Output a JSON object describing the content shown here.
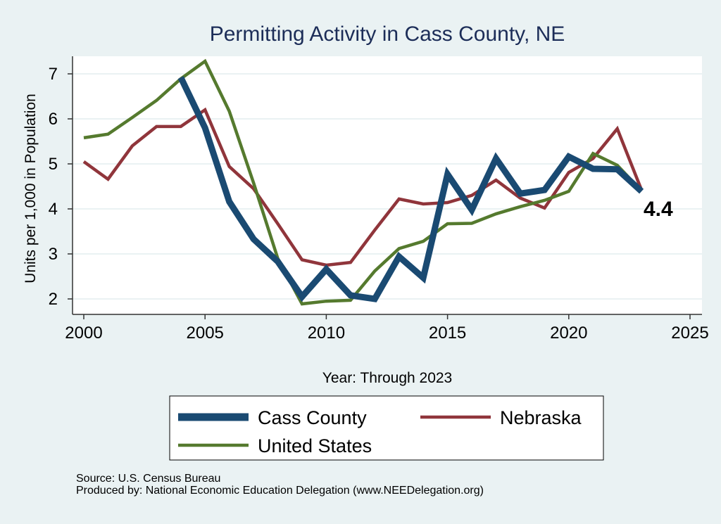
{
  "chart_data": {
    "type": "line",
    "title": "Permitting Activity in Cass County, NE",
    "xlabel": "Year: Through 2023",
    "ylabel": "Units per 1,000 in Population",
    "xlim": [
      2000,
      2025
    ],
    "ylim": [
      1.7,
      7.4
    ],
    "xticks": [
      2000,
      2005,
      2010,
      2015,
      2020,
      2025
    ],
    "yticks": [
      2,
      3,
      4,
      5,
      6,
      7
    ],
    "grid": true,
    "legend_position": "bottom",
    "annotation": {
      "text": "4.4",
      "x": 2023,
      "y": 4.4
    },
    "series": [
      {
        "name": "Cass County",
        "color": "#1a4a72",
        "x": [
          2004,
          2005,
          2006,
          2007,
          2008,
          2009,
          2010,
          2011,
          2012,
          2013,
          2014,
          2015,
          2016,
          2017,
          2018,
          2019,
          2020,
          2021,
          2022,
          2023
        ],
        "values": [
          6.92,
          5.8,
          4.16,
          3.33,
          2.83,
          2.05,
          2.66,
          2.08,
          2.0,
          2.94,
          2.47,
          4.77,
          3.98,
          5.12,
          4.34,
          4.42,
          5.16,
          4.89,
          4.88,
          4.39
        ]
      },
      {
        "name": "Nebraska",
        "color": "#90353b",
        "x": [
          2000,
          2001,
          2002,
          2003,
          2004,
          2005,
          2006,
          2007,
          2008,
          2009,
          2010,
          2011,
          2012,
          2013,
          2014,
          2015,
          2016,
          2017,
          2018,
          2019,
          2020,
          2021,
          2022,
          2023
        ],
        "values": [
          5.05,
          4.66,
          5.4,
          5.83,
          5.83,
          6.2,
          4.94,
          4.45,
          3.67,
          2.87,
          2.75,
          2.81,
          3.53,
          4.22,
          4.11,
          4.14,
          4.3,
          4.64,
          4.24,
          4.02,
          4.81,
          5.12,
          5.78,
          4.42
        ]
      },
      {
        "name": "United States",
        "color": "#557a2e",
        "x": [
          2000,
          2001,
          2002,
          2003,
          2004,
          2005,
          2006,
          2007,
          2008,
          2009,
          2010,
          2011,
          2012,
          2013,
          2014,
          2015,
          2016,
          2017,
          2018,
          2019,
          2020,
          2021,
          2022,
          2023
        ],
        "values": [
          5.58,
          5.66,
          6.03,
          6.41,
          6.89,
          7.28,
          6.17,
          4.58,
          2.9,
          1.89,
          1.95,
          1.97,
          2.62,
          3.12,
          3.28,
          3.67,
          3.68,
          3.89,
          4.05,
          4.19,
          4.39,
          5.23,
          4.97,
          4.4
        ]
      }
    ]
  },
  "footer": {
    "source": "Source: U.S. Census Bureau",
    "produced": "Produced by: National Economic Education Delegation (www.NEEDelegation.org)"
  }
}
